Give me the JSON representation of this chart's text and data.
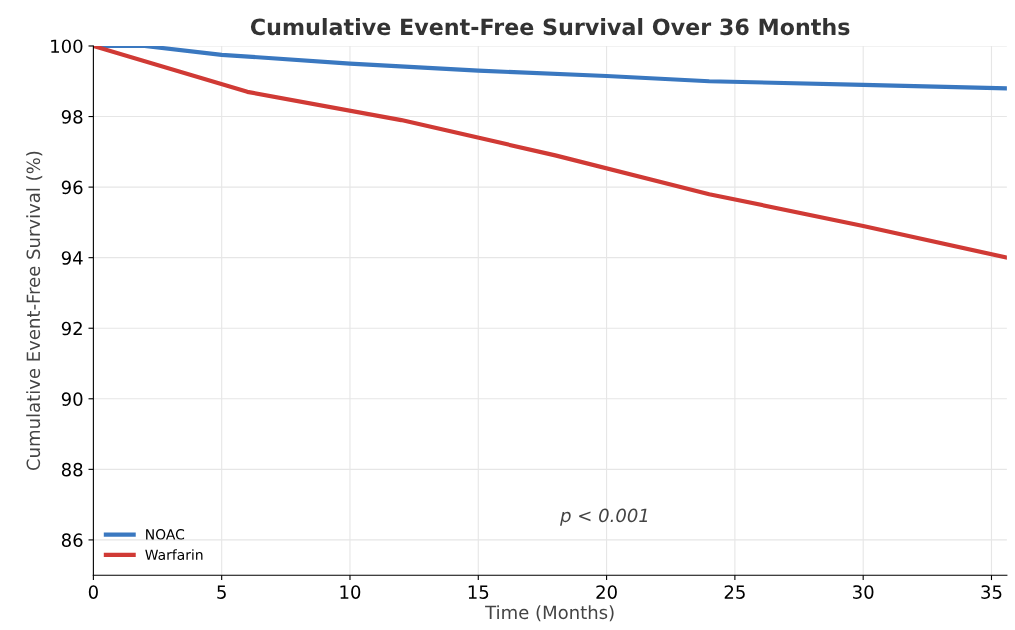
{
  "chart_data": {
    "type": "line",
    "title": "Cumulative Event-Free Survival Over 36 Months",
    "xlabel": "Time (Months)",
    "ylabel": "Cumulative Event-Free Survival (%)",
    "xlim": [
      0,
      35.6
    ],
    "xticks": [
      0,
      5,
      10,
      15,
      20,
      25,
      30,
      35
    ],
    "ylim": [
      85,
      100
    ],
    "yticks": [
      86,
      88,
      90,
      92,
      94,
      96,
      98,
      100
    ],
    "grid": true,
    "legend": "bottom left",
    "annotations": [
      "p < 0.001"
    ],
    "series": [
      {
        "name": "NOAC",
        "color": "#3a78c0",
        "x": [
          0,
          2,
          5,
          10,
          15,
          20,
          24,
          30,
          35.6
        ],
        "values": [
          100,
          100,
          99.75,
          99.5,
          99.3,
          99.15,
          99.0,
          98.9,
          98.8
        ]
      },
      {
        "name": "Warfarin",
        "color": "#d03a35",
        "x": [
          0,
          6,
          12,
          18,
          24,
          30,
          35.6
        ],
        "values": [
          100,
          98.7,
          97.9,
          96.9,
          95.8,
          94.9,
          94.0
        ]
      }
    ]
  }
}
